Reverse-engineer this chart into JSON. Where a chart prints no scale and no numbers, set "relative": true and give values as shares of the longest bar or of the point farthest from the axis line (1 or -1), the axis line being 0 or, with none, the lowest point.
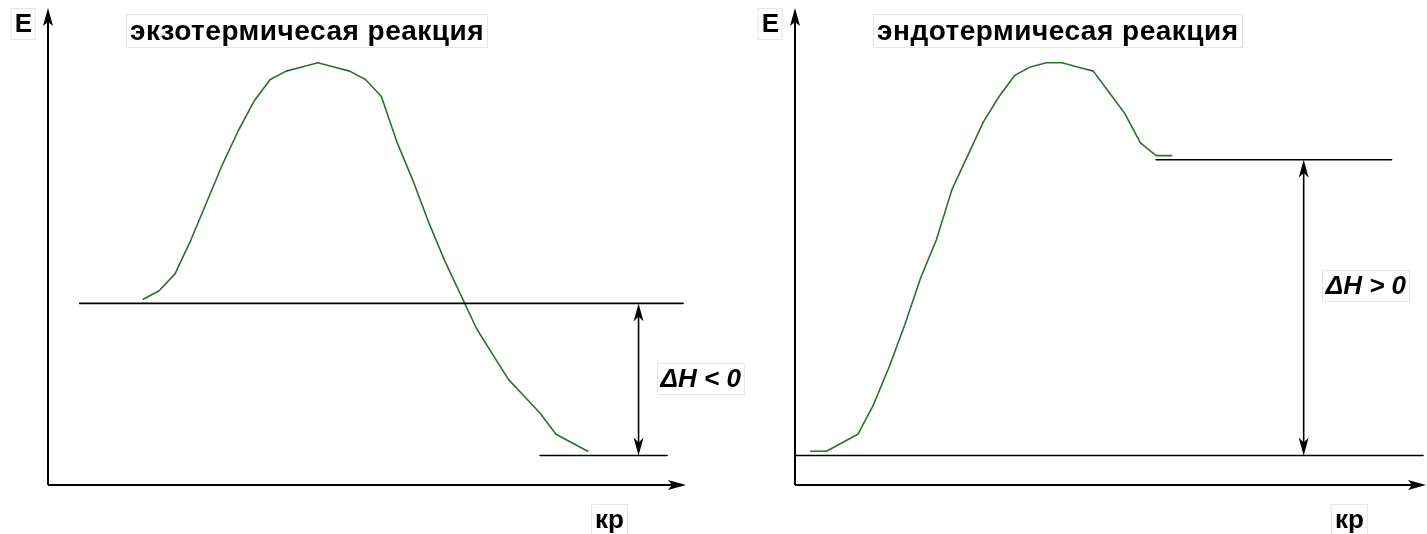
{
  "chart_data": [
    {
      "type": "line",
      "title": "экзотермичесая реакция",
      "xlabel": "кр",
      "ylabel": "E",
      "annotations": [
        "ΔH < 0"
      ],
      "relative": true,
      "marker": "none",
      "categories": [
        null,
        null,
        null,
        null,
        null,
        null,
        null,
        null,
        null,
        null,
        null,
        null,
        null,
        null,
        null,
        null,
        null,
        null,
        null,
        null,
        null,
        null,
        null,
        null,
        null,
        null,
        null,
        null,
        null,
        null,
        null,
        null,
        null,
        null,
        null,
        null,
        null,
        null,
        null,
        null,
        null
      ],
      "series": [
        {
          "color": "#2e6f2e",
          "values": [
            null,
            null,
            null,
            null,
            null,
            null,
            0.44,
            0.46,
            0.5,
            0.58,
            0.67,
            0.76,
            0.84,
            0.91,
            0.96,
            0.98,
            0.99,
            1,
            0.99,
            0.98,
            0.96,
            0.92,
            0.81,
            0.72,
            0.62,
            0.53,
            0.45,
            0.37,
            0.31,
            0.25,
            0.21,
            0.17,
            0.12,
            0.1,
            0.08,
            null,
            null,
            null,
            null,
            null,
            null
          ]
        },
        {
          "color": "#000000",
          "values": [
            null,
            null,
            0.43,
            0.43,
            0.43,
            0.43,
            0.43,
            0.43,
            0.43,
            0.43,
            0.43,
            0.43,
            0.43,
            0.43,
            0.43,
            0.43,
            0.43,
            0.43,
            0.43,
            0.43,
            0.43,
            0.43,
            0.43,
            0.43,
            0.43,
            0.43,
            0.43,
            0.43,
            0.43,
            0.43,
            0.43,
            0.43,
            0.43,
            0.43,
            0.43,
            0.43,
            0.43,
            0.43,
            0.43,
            0.43,
            0.43
          ]
        },
        {
          "color": "#000000",
          "values": [
            null,
            null,
            null,
            null,
            null,
            null,
            null,
            null,
            null,
            null,
            null,
            null,
            null,
            null,
            null,
            null,
            null,
            null,
            null,
            null,
            null,
            null,
            null,
            null,
            null,
            null,
            null,
            null,
            null,
            null,
            null,
            0.07,
            0.07,
            0.07,
            0.07,
            0.07,
            0.07,
            0.07,
            0.07,
            0.07,
            null
          ]
        }
      ]
    },
    {
      "type": "line",
      "title": "эндотермичесая реакция",
      "xlabel": "кр",
      "ylabel": "E",
      "annotations": [
        "ΔH > 0"
      ],
      "relative": true,
      "marker": "none",
      "categories": [
        null,
        null,
        null,
        null,
        null,
        null,
        null,
        null,
        null,
        null,
        null,
        null,
        null,
        null,
        null,
        null,
        null,
        null,
        null,
        null,
        null,
        null,
        null,
        null,
        null,
        null,
        null,
        null,
        null,
        null,
        null,
        null,
        null,
        null,
        null,
        null,
        null,
        null,
        null,
        null,
        null
      ],
      "series": [
        {
          "color": "#2e6f2e",
          "values": [
            null,
            0.08,
            0.08,
            0.1,
            0.12,
            0.19,
            0.28,
            0.38,
            0.49,
            0.58,
            0.7,
            0.78,
            0.86,
            0.92,
            0.97,
            0.99,
            1,
            1,
            0.99,
            0.98,
            0.93,
            0.88,
            0.81,
            0.78,
            0.78,
            null,
            null,
            null,
            null,
            null,
            null,
            null,
            null,
            null,
            null,
            null,
            null,
            null,
            null,
            null,
            null
          ]
        },
        {
          "color": "#000000",
          "values": [
            null,
            null,
            null,
            null,
            null,
            null,
            null,
            null,
            null,
            null,
            null,
            null,
            null,
            null,
            null,
            null,
            null,
            null,
            null,
            null,
            null,
            null,
            null,
            0.77,
            0.77,
            0.77,
            0.77,
            0.77,
            0.77,
            0.77,
            0.77,
            0.77,
            0.77,
            0.77,
            0.77,
            0.77,
            0.77,
            0.77,
            0.77,
            null,
            null
          ]
        },
        {
          "color": "#000000",
          "values": [
            0.07,
            0.07,
            0.07,
            0.07,
            0.07,
            0.07,
            0.07,
            0.07,
            0.07,
            0.07,
            0.07,
            0.07,
            0.07,
            0.07,
            0.07,
            0.07,
            0.07,
            0.07,
            0.07,
            0.07,
            0.07,
            0.07,
            0.07,
            0.07,
            0.07,
            0.07,
            0.07,
            0.07,
            0.07,
            0.07,
            0.07,
            0.07,
            0.07,
            0.07,
            0.07,
            0.07,
            0.07,
            0.07,
            0.07,
            0.07,
            0.07
          ]
        }
      ]
    }
  ]
}
